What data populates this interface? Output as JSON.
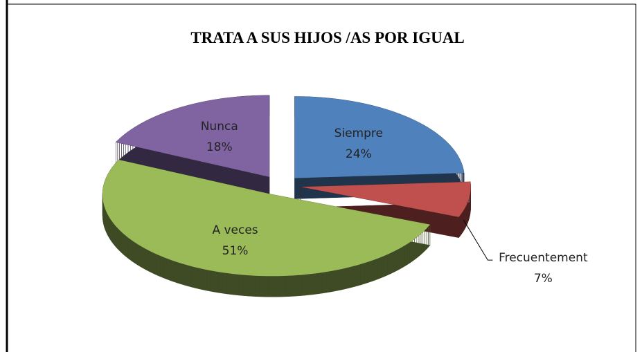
{
  "chart_data": {
    "type": "pie",
    "title": "TRATA A SUS HIJOS /AS POR IGUAL",
    "categories": [
      "Siempre",
      "Frecuentement",
      "A veces",
      "Nunca"
    ],
    "values": [
      24,
      7,
      51,
      18
    ],
    "value_labels": [
      "24%",
      "7%",
      "51%",
      "18%"
    ],
    "colors": [
      "#4f81bd",
      "#c0504d",
      "#9bbb59",
      "#8064a2"
    ]
  }
}
